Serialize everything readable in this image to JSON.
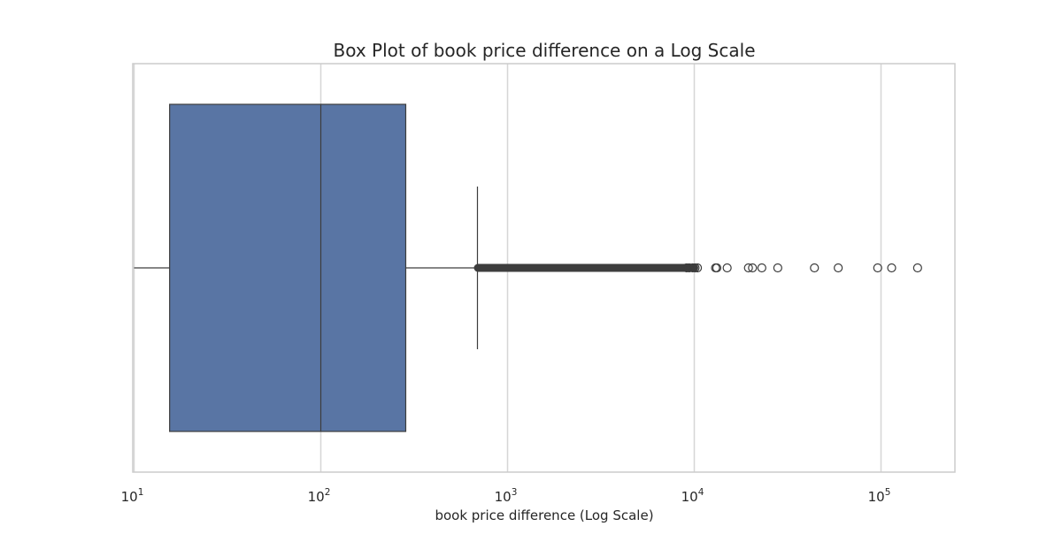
{
  "chart_data": {
    "type": "boxplot",
    "orientation": "horizontal",
    "title": "Box Plot of book price difference on a Log Scale",
    "xlabel": "book price difference (Log Scale)",
    "ylabel": "",
    "xscale": "log",
    "xlim": [
      10,
      250000
    ],
    "grid": true,
    "legend": "none",
    "x_ticks": [
      {
        "value": 10,
        "base": "10",
        "exp": "1"
      },
      {
        "value": 100,
        "base": "10",
        "exp": "2"
      },
      {
        "value": 1000,
        "base": "10",
        "exp": "3"
      },
      {
        "value": 10000,
        "base": "10",
        "exp": "4"
      },
      {
        "value": 100000,
        "base": "10",
        "exp": "5"
      }
    ],
    "box": {
      "whisker_low": 10,
      "q1": 15.5,
      "median": 100,
      "q3": 285,
      "whisker_high": 690
    },
    "outlier_band": {
      "from": 690,
      "to": 10500
    },
    "outliers": [
      9100,
      9400,
      9800,
      10100,
      10400,
      13000,
      13200,
      15000,
      19500,
      20500,
      23000,
      28000,
      44000,
      59000,
      96000,
      114000,
      157000
    ],
    "colors": {
      "box_fill": "#5975a4",
      "box_edge": "#3d3d3d",
      "grid": "#d6d6d6",
      "axes_edge": "#cccccc",
      "text": "#262626"
    }
  }
}
